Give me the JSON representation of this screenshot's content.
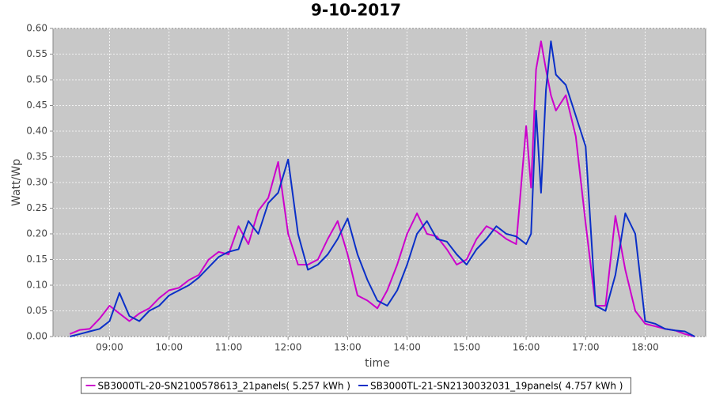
{
  "chart_data": {
    "type": "line",
    "title": "9-10-2017",
    "x_label": "time",
    "y_label": "Watt/Wp",
    "x": [
      "08:20",
      "08:30",
      "08:40",
      "08:50",
      "09:00",
      "09:10",
      "09:20",
      "09:30",
      "09:40",
      "09:50",
      "10:00",
      "10:10",
      "10:20",
      "10:30",
      "10:40",
      "10:50",
      "11:00",
      "11:10",
      "11:20",
      "11:30",
      "11:40",
      "11:50",
      "12:00",
      "12:10",
      "12:20",
      "12:30",
      "12:40",
      "12:50",
      "13:00",
      "13:10",
      "13:20",
      "13:30",
      "13:40",
      "13:50",
      "14:00",
      "14:10",
      "14:20",
      "14:30",
      "14:40",
      "14:50",
      "15:00",
      "15:10",
      "15:20",
      "15:30",
      "15:40",
      "15:50",
      "16:00",
      "16:05",
      "16:10",
      "16:15",
      "16:20",
      "16:25",
      "16:30",
      "16:40",
      "16:50",
      "17:00",
      "17:10",
      "17:20",
      "17:30",
      "17:40",
      "17:50",
      "18:00",
      "18:10",
      "18:20",
      "18:30",
      "18:40",
      "18:50"
    ],
    "series": [
      {
        "name": "SB3000TL-20-SN2100578613_21panels( 5.257 kWh )",
        "color": "#cc00cc",
        "values": [
          0.005,
          0.013,
          0.015,
          0.035,
          0.06,
          0.045,
          0.03,
          0.045,
          0.055,
          0.075,
          0.09,
          0.095,
          0.11,
          0.12,
          0.15,
          0.165,
          0.16,
          0.215,
          0.18,
          0.245,
          0.27,
          0.34,
          0.2,
          0.14,
          0.14,
          0.15,
          0.19,
          0.225,
          0.16,
          0.08,
          0.07,
          0.055,
          0.09,
          0.14,
          0.2,
          0.24,
          0.2,
          0.195,
          0.17,
          0.14,
          0.15,
          0.19,
          0.215,
          0.205,
          0.19,
          0.18,
          0.41,
          0.29,
          0.52,
          0.575,
          0.52,
          0.47,
          0.44,
          0.47,
          0.39,
          0.22,
          0.06,
          0.06,
          0.235,
          0.13,
          0.05,
          0.025,
          0.02,
          0.015,
          0.012,
          0.005,
          0
        ]
      },
      {
        "name": "SB3000TL-21-SN2130032031_19panels( 4.757 kWh )",
        "color": "#0a2fc8",
        "values": [
          0,
          0.005,
          0.01,
          0.015,
          0.03,
          0.085,
          0.04,
          0.03,
          0.05,
          0.06,
          0.08,
          0.09,
          0.1,
          0.115,
          0.135,
          0.155,
          0.165,
          0.17,
          0.225,
          0.2,
          0.26,
          0.28,
          0.345,
          0.2,
          0.13,
          0.14,
          0.16,
          0.19,
          0.23,
          0.16,
          0.11,
          0.07,
          0.06,
          0.09,
          0.14,
          0.2,
          0.225,
          0.19,
          0.185,
          0.16,
          0.14,
          0.17,
          0.19,
          0.215,
          0.2,
          0.195,
          0.18,
          0.2,
          0.44,
          0.28,
          0.48,
          0.575,
          0.51,
          0.49,
          0.43,
          0.37,
          0.06,
          0.05,
          0.12,
          0.24,
          0.2,
          0.03,
          0.025,
          0.015,
          0.012,
          0.01,
          0
        ]
      }
    ],
    "xlim": [
      "08:03",
      "19:01"
    ],
    "xticks": [
      "09:00",
      "10:00",
      "11:00",
      "12:00",
      "13:00",
      "14:00",
      "15:00",
      "16:00",
      "17:00",
      "18:00"
    ],
    "ylim": [
      0,
      0.6
    ],
    "yticks": [
      {
        "value": 0,
        "label": "0.00"
      },
      {
        "value": 0.05,
        "label": "0.05"
      },
      {
        "value": 0.1,
        "label": "0.10"
      },
      {
        "value": 0.15,
        "label": "0.15"
      },
      {
        "value": 0.2,
        "label": "0.20"
      },
      {
        "value": 0.25,
        "label": "0.25"
      },
      {
        "value": 0.3,
        "label": "0.30"
      },
      {
        "value": 0.35,
        "label": "0.35"
      },
      {
        "value": 0.4,
        "label": "0.40"
      },
      {
        "value": 0.45,
        "label": "0.45"
      },
      {
        "value": 0.5,
        "label": "0.50"
      },
      {
        "value": 0.55,
        "label": "0.55"
      },
      {
        "value": 0.6,
        "label": "0.60"
      }
    ],
    "grid": true,
    "legend": "bottom"
  }
}
